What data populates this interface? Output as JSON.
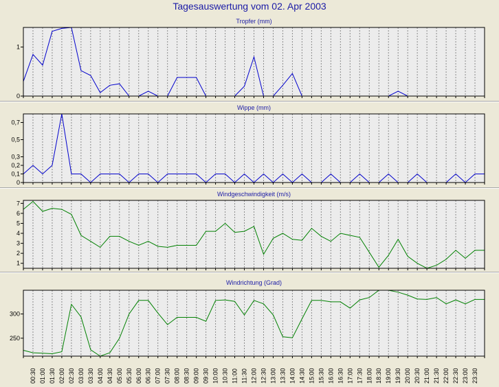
{
  "title": "Tagesauswertung vom 02. Apr 2003",
  "x_ticks": [
    "00:30",
    "01:00",
    "01:30",
    "02:00",
    "02:30",
    "03:00",
    "03:30",
    "04:00",
    "04:30",
    "05:00",
    "05:30",
    "06:00",
    "06:30",
    "07:00",
    "07:30",
    "08:00",
    "08:30",
    "09:00",
    "09:30",
    "10:00",
    "10:30",
    "11:00",
    "11:30",
    "12:00",
    "12:30",
    "13:00",
    "13:30",
    "14:00",
    "14:30",
    "15:00",
    "15:30",
    "16:00",
    "16:30",
    "17:00",
    "17:30",
    "18:00",
    "18:30",
    "19:00",
    "19:30",
    "20:00",
    "20:30",
    "21:00",
    "21:30",
    "22:00",
    "22:30",
    "23:00",
    "23:30"
  ],
  "chart_data": [
    {
      "type": "line",
      "title": "Tropfer (mm)",
      "color": "#0000cc",
      "ylim": [
        0,
        1.4
      ],
      "yticks": [
        {
          "v": 0,
          "label": "0"
        },
        {
          "v": 1,
          "label": "1"
        }
      ],
      "x": [
        "00:00",
        "00:30",
        "01:00",
        "01:30",
        "02:00",
        "02:30",
        "03:00",
        "03:30",
        "04:00",
        "04:30",
        "05:00",
        "05:30",
        "06:00",
        "06:30",
        "07:00",
        "07:30",
        "08:00",
        "08:30",
        "09:00",
        "09:30",
        "10:00",
        "10:30",
        "11:00",
        "11:30",
        "12:00",
        "12:30",
        "13:00",
        "13:30",
        "14:00",
        "14:30",
        "15:00",
        "15:30",
        "16:00",
        "16:30",
        "17:00",
        "17:30",
        "18:00",
        "18:30",
        "19:00",
        "19:30",
        "20:00",
        "20:30",
        "21:00",
        "21:30",
        "22:00",
        "22:30",
        "23:00",
        "23:30"
      ],
      "values": [
        0.3,
        0.85,
        0.63,
        1.32,
        1.38,
        1.45,
        0.52,
        0.42,
        0.07,
        0.22,
        0.25,
        0,
        0,
        0.1,
        0,
        0,
        0.38,
        0.38,
        0.38,
        0,
        0,
        0,
        0,
        0.2,
        0.8,
        0,
        0,
        0.22,
        0.46,
        0,
        0,
        0,
        0,
        0,
        0,
        0,
        0,
        0,
        0,
        0.1,
        0,
        0,
        0,
        0,
        0,
        0,
        0,
        0
      ]
    },
    {
      "type": "line",
      "title": "Wippe (mm)",
      "color": "#0000cc",
      "ylim": [
        0,
        0.8
      ],
      "yticks": [
        {
          "v": 0,
          "label": "0"
        },
        {
          "v": 0.1,
          "label": "0,1"
        },
        {
          "v": 0.2,
          "label": "0,2"
        },
        {
          "v": 0.3,
          "label": "0,3"
        },
        {
          "v": 0.5,
          "label": "0,5"
        },
        {
          "v": 0.7,
          "label": "0,7"
        }
      ],
      "x": [
        "00:00",
        "00:30",
        "01:00",
        "01:30",
        "02:00",
        "02:30",
        "03:00",
        "03:30",
        "04:00",
        "04:30",
        "05:00",
        "05:30",
        "06:00",
        "06:30",
        "07:00",
        "07:30",
        "08:00",
        "08:30",
        "09:00",
        "09:30",
        "10:00",
        "10:30",
        "11:00",
        "11:30",
        "12:00",
        "12:30",
        "13:00",
        "13:30",
        "14:00",
        "14:30",
        "15:00",
        "15:30",
        "16:00",
        "16:30",
        "17:00",
        "17:30",
        "18:00",
        "18:30",
        "19:00",
        "19:30",
        "20:00",
        "20:30",
        "21:00",
        "21:30",
        "22:00",
        "22:30",
        "23:00",
        "23:30"
      ],
      "values": [
        0.1,
        0.2,
        0.1,
        0.2,
        0.8,
        0.1,
        0.1,
        0,
        0.1,
        0.1,
        0.1,
        0,
        0.1,
        0.1,
        0,
        0.1,
        0.1,
        0.1,
        0.1,
        0,
        0.1,
        0.1,
        0,
        0.1,
        0,
        0.1,
        0,
        0.1,
        0,
        0.1,
        0,
        0,
        0.1,
        0,
        0,
        0.1,
        0,
        0,
        0.1,
        0,
        0,
        0.1,
        0,
        0,
        0,
        0.1,
        0,
        0.1
      ]
    },
    {
      "type": "line",
      "title": "Windgeschwindigkeit (m/s)",
      "color": "#008000",
      "ylim": [
        0.5,
        7.3
      ],
      "yticks": [
        {
          "v": 1,
          "label": "1"
        },
        {
          "v": 2,
          "label": "2"
        },
        {
          "v": 3,
          "label": "3"
        },
        {
          "v": 4,
          "label": "4"
        },
        {
          "v": 5,
          "label": "5"
        },
        {
          "v": 6,
          "label": "6"
        },
        {
          "v": 7,
          "label": "7"
        }
      ],
      "x": [
        "00:00",
        "00:30",
        "01:00",
        "01:30",
        "02:00",
        "02:30",
        "03:00",
        "03:30",
        "04:00",
        "04:30",
        "05:00",
        "05:30",
        "06:00",
        "06:30",
        "07:00",
        "07:30",
        "08:00",
        "08:30",
        "09:00",
        "09:30",
        "10:00",
        "10:30",
        "11:00",
        "11:30",
        "12:00",
        "12:30",
        "13:00",
        "13:30",
        "14:00",
        "14:30",
        "15:00",
        "15:30",
        "16:00",
        "16:30",
        "17:00",
        "17:30",
        "18:00",
        "18:30",
        "19:00",
        "19:30",
        "20:00",
        "20:30",
        "21:00",
        "21:30",
        "22:00",
        "22:30",
        "23:00",
        "23:30"
      ],
      "values": [
        6.4,
        7.2,
        6.2,
        6.5,
        6.4,
        5.9,
        3.8,
        3.2,
        2.6,
        3.7,
        3.7,
        3.2,
        2.8,
        3.2,
        2.7,
        2.6,
        2.8,
        2.8,
        2.8,
        4.2,
        4.2,
        5.0,
        4.1,
        4.2,
        4.7,
        1.9,
        3.5,
        4.0,
        3.4,
        3.3,
        4.5,
        3.7,
        3.2,
        4.0,
        3.8,
        3.6,
        2.1,
        0.6,
        1.8,
        3.4,
        1.7,
        1.0,
        0.4,
        0.8,
        1.4,
        2.3,
        1.5,
        2.3
      ]
    },
    {
      "type": "line",
      "title": "Windrichtung (Grad)",
      "color": "#008000",
      "ylim": [
        213,
        349
      ],
      "yticks": [
        {
          "v": 250,
          "label": "250"
        },
        {
          "v": 300,
          "label": "300"
        }
      ],
      "x": [
        "00:00",
        "00:30",
        "01:00",
        "01:30",
        "02:00",
        "02:30",
        "03:00",
        "03:30",
        "04:00",
        "04:30",
        "05:00",
        "05:30",
        "06:00",
        "06:30",
        "07:00",
        "07:30",
        "08:00",
        "08:30",
        "09:00",
        "09:30",
        "10:00",
        "10:30",
        "11:00",
        "11:30",
        "12:00",
        "12:30",
        "13:00",
        "13:30",
        "14:00",
        "14:30",
        "15:00",
        "15:30",
        "16:00",
        "16:30",
        "17:00",
        "17:30",
        "18:00",
        "18:30",
        "19:00",
        "19:30",
        "20:00",
        "20:30",
        "21:00",
        "21:30",
        "22:00",
        "22:30",
        "23:00",
        "23:30"
      ],
      "values": [
        225,
        220,
        219,
        218,
        222,
        320,
        294,
        226,
        212,
        220,
        250,
        300,
        328,
        328,
        302,
        278,
        293,
        293,
        293,
        285,
        328,
        329,
        326,
        298,
        328,
        321,
        298,
        253,
        251,
        290,
        328,
        328,
        325,
        325,
        312,
        329,
        334,
        349,
        351,
        345,
        339,
        331,
        330,
        334,
        321,
        329,
        321,
        330
      ]
    }
  ]
}
